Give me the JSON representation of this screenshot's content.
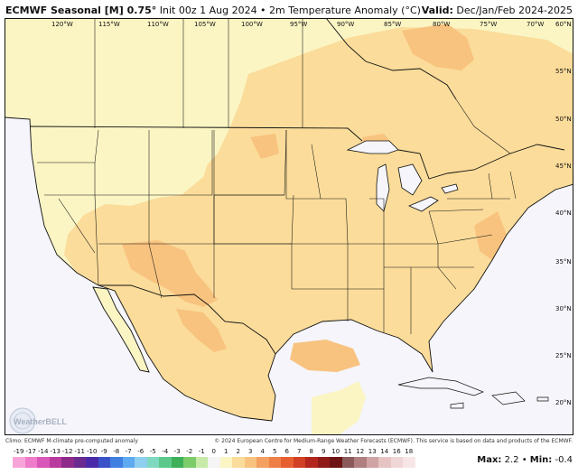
{
  "header": {
    "model": "ECMWF Seasonal [M] 0.75°",
    "run_info": "Init 00z 1 Aug 2024 • 2m Temperature Anomaly (°C)",
    "valid_label": "Valid:",
    "valid_value": "Dec/Jan/Feb 2024-2025"
  },
  "map": {
    "longitude_labels": [
      "120°W",
      "115°W",
      "110°W",
      "105°W",
      "100°W",
      "95°W",
      "90°W",
      "85°W",
      "80°W",
      "75°W",
      "70°W"
    ],
    "latitude_labels": [
      "60°N",
      "55°N",
      "50°N",
      "45°N",
      "40°N",
      "35°N",
      "30°N",
      "25°N",
      "20°N"
    ],
    "watermark": "WeatherBELL",
    "colors": {
      "ocean": "#f5f5fb",
      "anomaly_0_1": "#fbf5c4",
      "anomaly_1_2": "#fbdc9a",
      "anomaly_2_3": "#f8c37f",
      "borders": "#111111"
    }
  },
  "footer": {
    "climo": "Climo: ECMWF M-climate pre-computed anomaly",
    "copyright": "© 2024 European Centre for Medium-Range Weather Forecasts (ECMWF). This service is based on data and products of the ECMWF.",
    "max_label": "Max:",
    "max_value": "2.2",
    "separator": "•",
    "min_label": "Min:",
    "min_value": "-0.4"
  },
  "colorbar": {
    "ticks": [
      "-19",
      "-17",
      "-14",
      "-13",
      "-12",
      "-11",
      "-10",
      "-9",
      "-8",
      "-7",
      "-6",
      "-5",
      "-4",
      "-3",
      "-2",
      "-1",
      "0",
      "1",
      "2",
      "3",
      "4",
      "5",
      "6",
      "7",
      "8",
      "9",
      "10",
      "11",
      "12",
      "13",
      "14",
      "16",
      "18"
    ],
    "colors": [
      "#f7a5d8",
      "#ee7ccb",
      "#d957b8",
      "#b93a9e",
      "#8e2a8a",
      "#6a2a8f",
      "#4a2aa8",
      "#3a52c8",
      "#3f7fe0",
      "#5eaaf0",
      "#8ecff0",
      "#7fd8c0",
      "#5cc98a",
      "#3fb05a",
      "#7ccc6a",
      "#c8eaa8",
      "#f5f5f5",
      "#fbf5c4",
      "#fbdc9a",
      "#f8c37f",
      "#f3a060",
      "#ee7f45",
      "#e65f30",
      "#d13f24",
      "#b2261d",
      "#8f1a18",
      "#6e1414",
      "#8a5a5a",
      "#b07f7f",
      "#d0a4a4",
      "#e6c4c4",
      "#f0d6d6",
      "#f8e6e6"
    ]
  }
}
